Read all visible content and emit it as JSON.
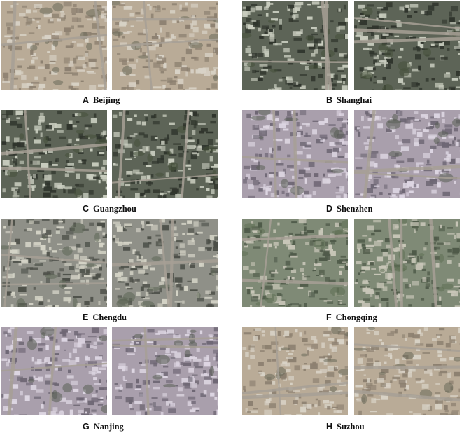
{
  "panels": [
    {
      "letter": "A",
      "city": "Beijing",
      "tone": "beige"
    },
    {
      "letter": "B",
      "city": "Shanghai",
      "tone": "dark"
    },
    {
      "letter": "C",
      "city": "Guangzhou",
      "tone": "dark"
    },
    {
      "letter": "D",
      "city": "Shenzhen",
      "tone": "lilac"
    },
    {
      "letter": "E",
      "city": "Chengdu",
      "tone": "grey"
    },
    {
      "letter": "F",
      "city": "Chongqing",
      "tone": "green"
    },
    {
      "letter": "G",
      "city": "Nanjing",
      "tone": "lilac"
    },
    {
      "letter": "H",
      "city": "Suzhou",
      "tone": "beige"
    }
  ],
  "colors": {
    "beige": [
      "#b9ab97",
      "#8c8070",
      "#d8d2c6",
      "#6a6a5a"
    ],
    "dark": [
      "#5d6457",
      "#2f342c",
      "#c9cdbf",
      "#46513b"
    ],
    "lilac": [
      "#a99fac",
      "#6e6774",
      "#ddd6e2",
      "#5a5e55"
    ],
    "grey": [
      "#8f9088",
      "#4c4f48",
      "#d4d3c6",
      "#5d6656"
    ],
    "green": [
      "#7f8a76",
      "#4f5a49",
      "#c8c6b8",
      "#5f7054"
    ]
  }
}
